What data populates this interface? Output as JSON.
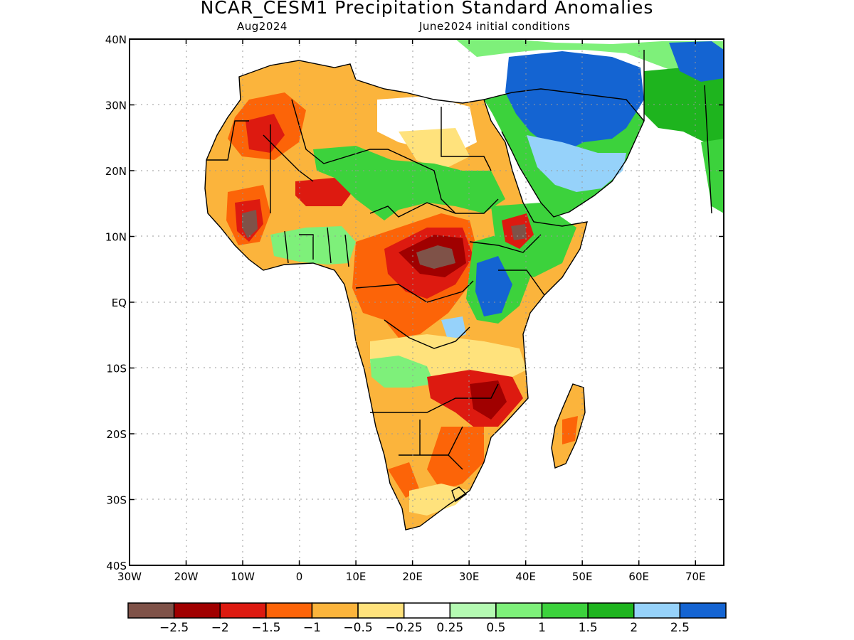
{
  "title": "NCAR_CESM1 Precipitation Standard Anomalies",
  "subtitle_left": "Aug2024",
  "subtitle_right": "June2024 initial conditions",
  "map": {
    "lon_range": [
      -30,
      75
    ],
    "lat_range": [
      -40,
      40
    ],
    "grid": true,
    "lon_ticks": [
      {
        "value": -30,
        "label": "30W"
      },
      {
        "value": -20,
        "label": "20W"
      },
      {
        "value": -10,
        "label": "10W"
      },
      {
        "value": 0,
        "label": "0"
      },
      {
        "value": 10,
        "label": "10E"
      },
      {
        "value": 20,
        "label": "20E"
      },
      {
        "value": 30,
        "label": "30E"
      },
      {
        "value": 40,
        "label": "40E"
      },
      {
        "value": 50,
        "label": "50E"
      },
      {
        "value": 60,
        "label": "60E"
      },
      {
        "value": 70,
        "label": "70E"
      }
    ],
    "lat_ticks": [
      {
        "value": 40,
        "label": "40N"
      },
      {
        "value": 30,
        "label": "30N"
      },
      {
        "value": 20,
        "label": "20N"
      },
      {
        "value": 10,
        "label": "10N"
      },
      {
        "value": 0,
        "label": "EQ"
      },
      {
        "value": -10,
        "label": "10S"
      },
      {
        "value": -20,
        "label": "20S"
      },
      {
        "value": -30,
        "label": "30S"
      },
      {
        "value": -40,
        "label": "40S"
      }
    ],
    "colors": {
      "lt_neg25": "#7f5248",
      "neg2_neg25": "#a00000",
      "neg15_neg2": "#dd1a10",
      "neg1_neg15": "#fc6408",
      "neg05_neg1": "#fbb43c",
      "neg025_neg05": "#ffe27c",
      "neutral": "#ffffff",
      "pos025_05": "#b4fab2",
      "pos05_1": "#7ef07a",
      "pos1_15": "#3cd23c",
      "pos15_2": "#1eb41e",
      "pos2_25": "#96d2fa",
      "gt25": "#1464d2"
    }
  },
  "colorbar": {
    "colors": [
      "#7f5248",
      "#a00000",
      "#dd1a10",
      "#fc6408",
      "#fbb43c",
      "#ffe27c",
      "#ffffff",
      "#b4fab2",
      "#7ef07a",
      "#3cd23c",
      "#1eb41e",
      "#96d2fa",
      "#1464d2"
    ],
    "labels": [
      "−2.5",
      "−2",
      "−1.5",
      "−1",
      "−0.5",
      "−0.25",
      "0.25",
      "0.5",
      "1",
      "1.5",
      "2",
      "2.5"
    ]
  }
}
